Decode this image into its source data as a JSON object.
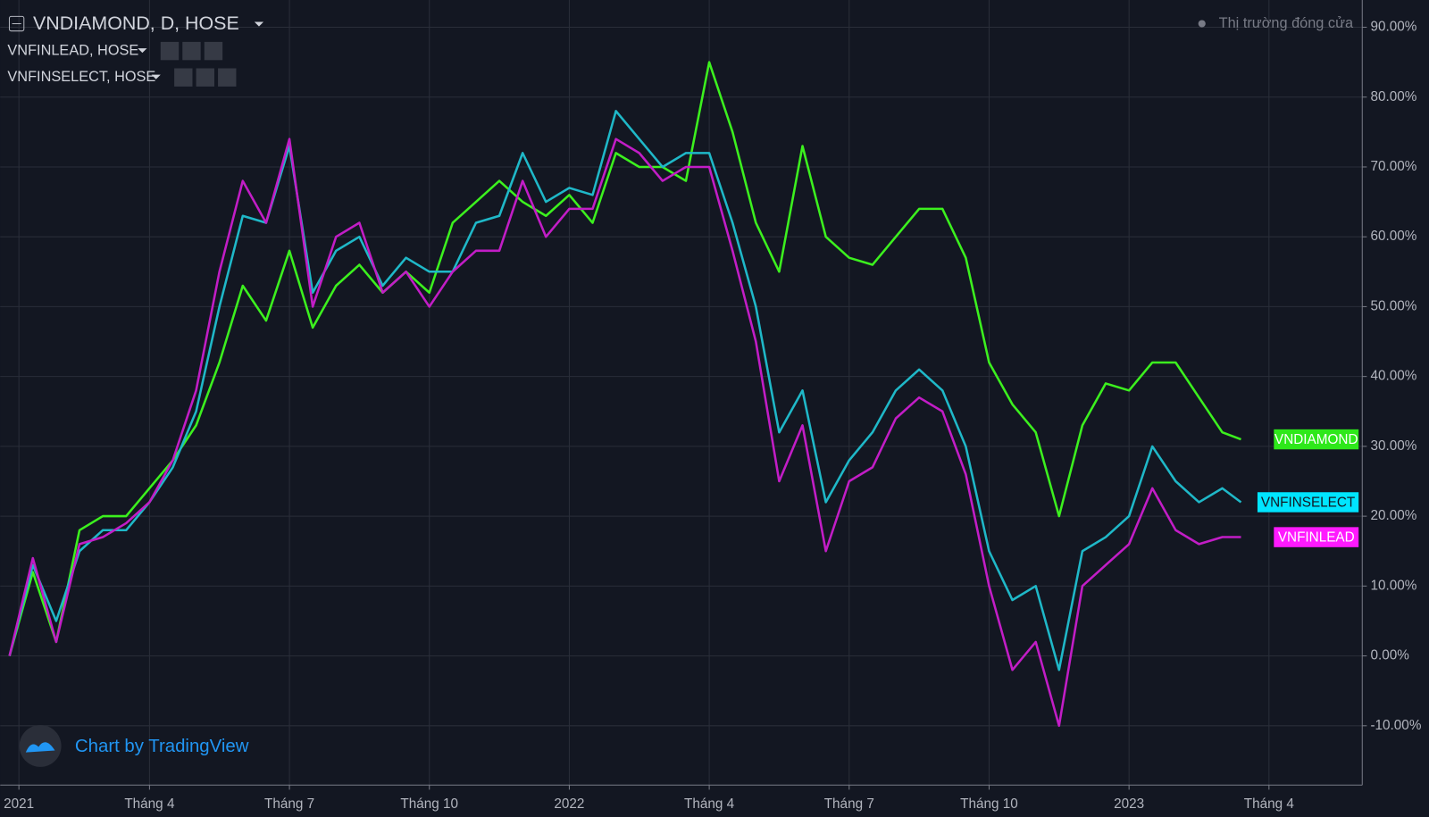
{
  "chart_data": {
    "type": "line",
    "title": "VNDIAMOND, D, HOSE",
    "legend_items": [
      "VNFINLEAD, HOSE",
      "VNFINSELECT, HOSE"
    ],
    "status": "Thị trường đóng cửa",
    "watermark": "Chart by TradingView",
    "x": [
      0,
      0.5,
      1,
      1.5,
      2,
      2.5,
      3,
      3.5,
      4,
      4.5,
      5,
      5.5,
      6,
      6.5,
      7,
      7.5,
      8,
      8.5,
      9,
      9.5,
      10,
      10.5,
      11,
      11.5,
      12,
      12.5,
      13,
      13.5,
      14,
      14.5,
      15,
      15.5,
      16,
      16.5,
      17,
      17.5,
      18,
      18.5,
      19,
      19.5,
      20,
      20.5,
      21,
      21.5,
      22,
      22.5,
      23,
      23.5,
      24,
      24.5,
      25,
      25.5,
      26,
      26.4
    ],
    "series": [
      {
        "name": "VNDIAMOND",
        "color": "#3cf01e",
        "values": [
          0,
          12,
          2,
          18,
          20,
          20,
          24,
          28,
          33,
          42,
          53,
          48,
          58,
          47,
          53,
          56,
          52,
          55,
          52,
          62,
          65,
          68,
          65,
          63,
          66,
          62,
          72,
          70,
          70,
          68,
          85,
          75,
          62,
          55,
          73,
          60,
          57,
          56,
          60,
          64,
          64,
          57,
          42,
          36,
          32,
          20,
          33,
          39,
          38,
          42,
          42,
          37,
          32,
          31
        ]
      },
      {
        "name": "VNFINSELECT",
        "color": "#1fb8c8",
        "values": [
          0,
          13,
          5,
          15,
          18,
          18,
          22,
          27,
          35,
          50,
          63,
          62,
          73,
          52,
          58,
          60,
          53,
          57,
          55,
          55,
          62,
          63,
          72,
          65,
          67,
          66,
          78,
          74,
          70,
          72,
          72,
          62,
          50,
          32,
          38,
          22,
          28,
          32,
          38,
          41,
          38,
          30,
          15,
          8,
          10,
          -2,
          15,
          17,
          20,
          30,
          25,
          22,
          24,
          22
        ]
      },
      {
        "name": "VNFINLEAD",
        "color": "#c21dc6",
        "values": [
          0,
          14,
          2,
          16,
          17,
          19,
          22,
          28,
          38,
          55,
          68,
          62,
          74,
          50,
          60,
          62,
          52,
          55,
          50,
          55,
          58,
          58,
          68,
          60,
          64,
          64,
          74,
          72,
          68,
          70,
          70,
          58,
          45,
          25,
          33,
          15,
          25,
          27,
          34,
          37,
          35,
          26,
          10,
          -2,
          2,
          -10,
          10,
          13,
          16,
          24,
          18,
          16,
          17,
          17
        ]
      }
    ],
    "label_colors": [
      "#2ee81a",
      "#00e5ff",
      "#ff1aff"
    ],
    "xlim": [
      -0.2,
      29
    ],
    "xticks": [
      {
        "value": 0.2,
        "label": "2021"
      },
      {
        "value": 3,
        "label": "Tháng 4"
      },
      {
        "value": 6,
        "label": "Tháng 7"
      },
      {
        "value": 9,
        "label": "Tháng 10"
      },
      {
        "value": 12,
        "label": "2022"
      },
      {
        "value": 15,
        "label": "Tháng 4"
      },
      {
        "value": 18,
        "label": "Tháng 7"
      },
      {
        "value": 21,
        "label": "Tháng 10"
      },
      {
        "value": 24,
        "label": "2023"
      },
      {
        "value": 27,
        "label": "Tháng 4"
      }
    ],
    "ylim": [
      -18.5,
      93.9
    ],
    "yticks": [
      {
        "value": 90,
        "label": "90.00%"
      },
      {
        "value": 80,
        "label": "80.00%"
      },
      {
        "value": 70,
        "label": "70.00%"
      },
      {
        "value": 60,
        "label": "60.00%"
      },
      {
        "value": 50,
        "label": "50.00%"
      },
      {
        "value": 40,
        "label": "40.00%"
      },
      {
        "value": 30,
        "label": "30.00%"
      },
      {
        "value": 20,
        "label": "20.00%"
      },
      {
        "value": 10,
        "label": "10.00%"
      },
      {
        "value": 0,
        "label": "0.00%"
      },
      {
        "value": -10,
        "label": "-10.00%"
      }
    ],
    "grid": true
  }
}
